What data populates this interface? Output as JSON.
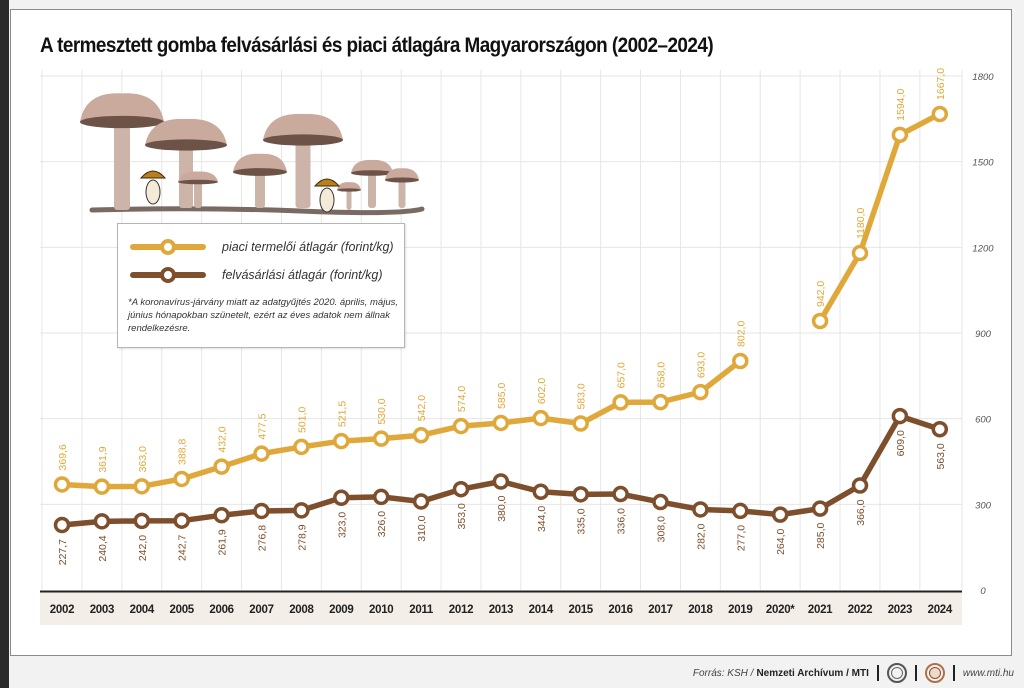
{
  "title": "A termesztett gomba felvásárlási és piaci átlagára Magyarországon (2002–2024)",
  "colors": {
    "market": "#e0a83a",
    "purchase": "#7d4f2c",
    "grid": "#e6e6e6",
    "year_band": "#f3efe8",
    "axis_label": "#555555"
  },
  "legend": {
    "market_label": "piaci termelői átlagár (forint/kg)",
    "purchase_label": "felvásárlási átlagár (forint/kg)",
    "note": "*A koronavírus-járvány miatt az adatgyűjtés 2020. április, május, június hónapokban szünetelt, ezért az éves adatok nem állnak rendelkezésre."
  },
  "footer": {
    "source_prefix": "Forrás: KSH /",
    "source_bold": "Nemzeti Archívum / MTI",
    "logo1": "MTVA logo",
    "logo2": "MTI logo",
    "url": "www.mti.hu"
  },
  "chart_data": {
    "type": "line",
    "title": "A termesztett gomba felvásárlási és piaci átlagára Magyarországon (2002–2024)",
    "xlabel": "",
    "ylabel": "",
    "ylim": [
      0,
      1800
    ],
    "yticks": [
      0,
      300,
      600,
      900,
      1200,
      1500,
      1800
    ],
    "y_axis_position": "right",
    "grid": true,
    "legend_position": "top-left",
    "categories": [
      "2002",
      "2003",
      "2004",
      "2005",
      "2006",
      "2007",
      "2008",
      "2009",
      "2010",
      "2011",
      "2012",
      "2013",
      "2014",
      "2015",
      "2016",
      "2017",
      "2018",
      "2019",
      "2020*",
      "2021",
      "2022",
      "2023",
      "2024"
    ],
    "series": [
      {
        "name": "piaci termelői átlagár (forint/kg)",
        "key": "market",
        "values": [
          369.6,
          361.9,
          363.0,
          388.8,
          432.0,
          477.5,
          501.0,
          521.5,
          530.0,
          542.0,
          574.0,
          585.0,
          602.0,
          583.0,
          657.0,
          658.0,
          693.0,
          802.0,
          null,
          942.0,
          1180.0,
          1594.0,
          1667.0
        ],
        "labels": [
          "369,6",
          "361,9",
          "363,0",
          "388,8",
          "432,0",
          "477,5",
          "501,0",
          "521,5",
          "530,0",
          "542,0",
          "574,0",
          "585,0",
          "602,0",
          "583,0",
          "657,0",
          "658,0",
          "693,0",
          "802,0",
          "",
          "942,0",
          "1180,0",
          "1594,0",
          "1667,0"
        ]
      },
      {
        "name": "felvásárlási átlagár (forint/kg)",
        "key": "purchase",
        "values": [
          227.7,
          240.4,
          242.0,
          242.7,
          261.9,
          276.8,
          278.9,
          323.0,
          326.0,
          310.0,
          353.0,
          380.0,
          344.0,
          335.0,
          336.0,
          308.0,
          282.0,
          277.0,
          264.0,
          285.0,
          366.0,
          609.0,
          563.0
        ],
        "labels": [
          "227,7",
          "240,4",
          "242,0",
          "242,7",
          "261,9",
          "276,8",
          "278,9",
          "323,0",
          "326,0",
          "310,0",
          "353,0",
          "380,0",
          "344,0",
          "335,0",
          "336,0",
          "308,0",
          "282,0",
          "277,0",
          "264,0",
          "285,0",
          "366,0",
          "609,0",
          "563,0"
        ]
      }
    ]
  }
}
